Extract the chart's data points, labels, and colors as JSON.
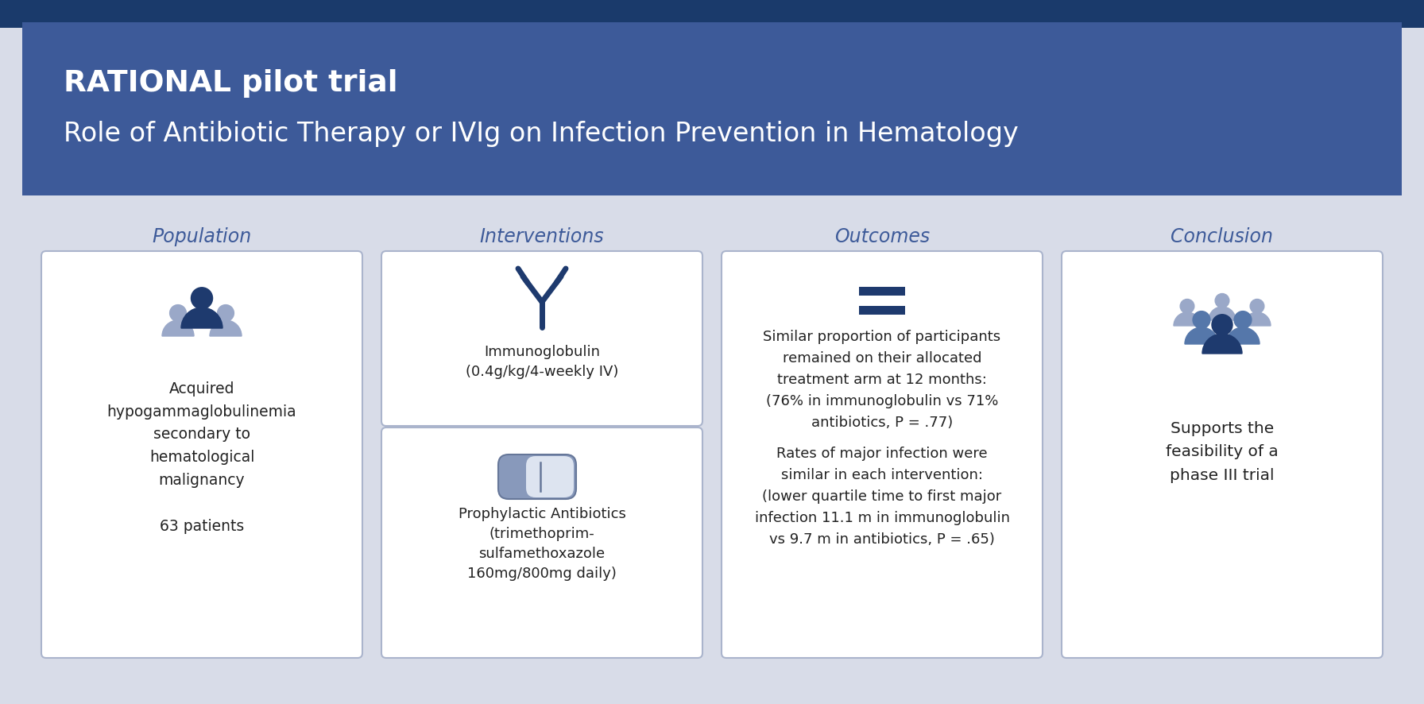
{
  "bg_color": "#d8dce8",
  "header_dark_color": "#1a3a6b",
  "header_mid_color": "#3d5a99",
  "header_text": "RATIONAL pilot trial",
  "header_subtext": "Role of Antibiotic Therapy or IVIg on Infection Prevention in Hematology",
  "header_text_color": "#ffffff",
  "section_titles": [
    "Population",
    "Interventions",
    "Outcomes",
    "Conclusion"
  ],
  "section_title_color": "#3d5a99",
  "card_bg": "#ffffff",
  "card_border_color": "#aab4cc",
  "population_text": "Acquired\nhypogammaglobulinemia\nsecondary to\nhematological\nmalignancy\n\n63 patients",
  "intervention1_text": "Immunoglobulin\n(0.4g/kg/4-weekly IV)",
  "intervention2_text": "Prophylactic Antibiotics\n(trimethoprim-\nsulfamethoxazole\n160mg/800mg daily)",
  "outcomes_text1": "Similar proportion of participants\nremained on their allocated\ntreatment arm at 12 months:\n(76% in immunoglobulin vs 71%\nantibiotics, P = .77)",
  "outcomes_text2": "Rates of major infection were\nsimilar in each intervention:\n(lower quartile time to first major\ninfection 11.1 m in immunoglobulin\nvs 9.7 m in antibiotics, P = .65)",
  "conclusion_text": "Supports the\nfeasibility of a\nphase III trial",
  "dark_blue": "#1e3a6e",
  "mid_blue": "#3d5a99",
  "light_blue_gray": "#8899bb",
  "person_bg_color": "#9aa8c8",
  "person_mid_color": "#5577aa",
  "text_color": "#222222"
}
